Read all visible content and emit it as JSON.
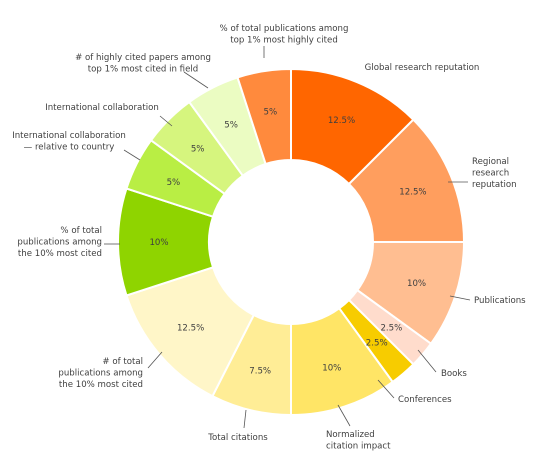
{
  "chart_data": {
    "type": "pie",
    "variant": "donut",
    "title": "",
    "slices": [
      {
        "label": "Global research reputation",
        "value": 12.5,
        "value_label": "12.5%",
        "color": "#ff6600"
      },
      {
        "label": "Regional research reputation",
        "value": 12.5,
        "value_label": "12.5%",
        "color": "#ff9e5e"
      },
      {
        "label": "Publications",
        "value": 10,
        "value_label": "10%",
        "color": "#ffbe91"
      },
      {
        "label": "Books",
        "value": 2.5,
        "value_label": "2.5%",
        "color": "#ffdccc"
      },
      {
        "label": "Conferences",
        "value": 2.5,
        "value_label": "2.5%",
        "color": "#f7cc00"
      },
      {
        "label": "Normalized citation impact",
        "value": 10,
        "value_label": "10%",
        "color": "#ffe566"
      },
      {
        "label": "Total citations",
        "value": 7.5,
        "value_label": "7.5%",
        "color": "#ffed96"
      },
      {
        "label": "# of total publications among the 10% most cited",
        "value": 12.5,
        "value_label": "12.5%",
        "color": "#fff6c8"
      },
      {
        "label": "% of total publications among the 10% most cited",
        "value": 10,
        "value_label": "10%",
        "color": "#8fd400"
      },
      {
        "label": "International collaboration — relative to country",
        "value": 5,
        "value_label": "5%",
        "color": "#b9ee44"
      },
      {
        "label": "International collaboration",
        "value": 5,
        "value_label": "5%",
        "color": "#d6f57e"
      },
      {
        "label": "# of highly cited papers among top 1% most cited in field",
        "value": 5,
        "value_label": "5%",
        "color": "#ebfcc2"
      },
      {
        "label": "% of total publications among top 1% most highly cited",
        "value": 5,
        "value_label": "5%",
        "color": "#ff8a3d"
      }
    ]
  }
}
